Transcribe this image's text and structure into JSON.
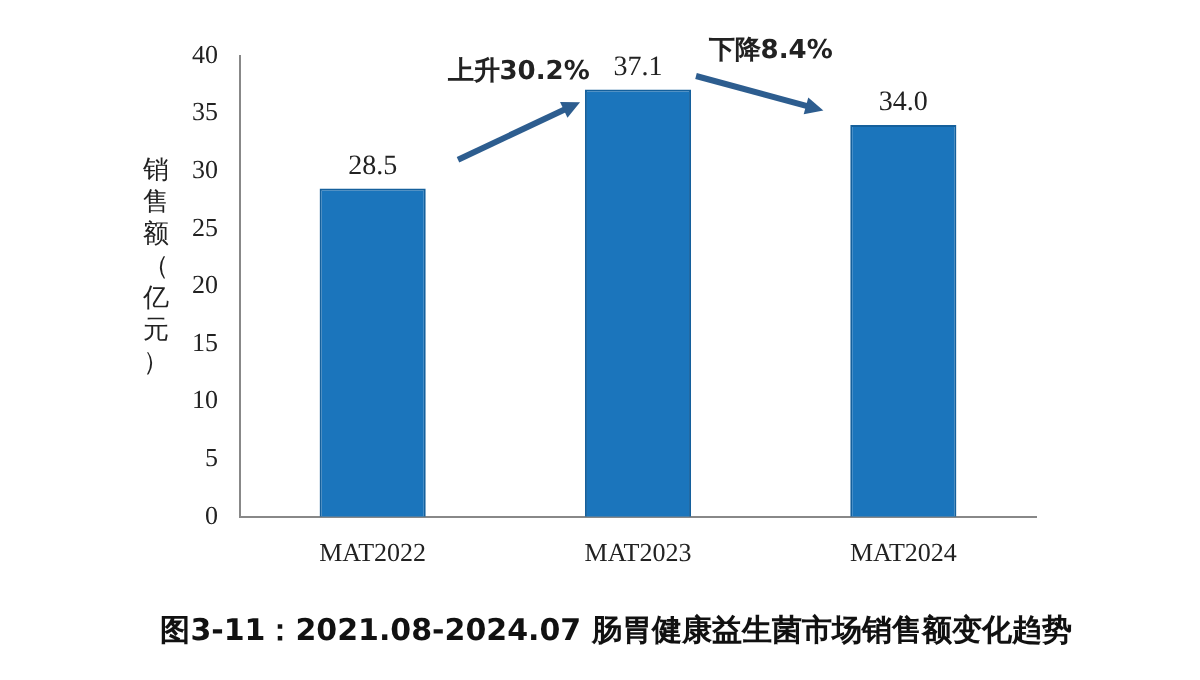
{
  "chart_data": {
    "type": "bar",
    "title": "图3-11：2021.08-2024.07 肠胃健康益生菌市场销售额变化趋势",
    "ylabel": "销售额（亿元）",
    "categories": [
      "MAT2022",
      "MAT2023",
      "MAT2024"
    ],
    "values": [
      28.5,
      37.1,
      34.0
    ],
    "value_labels": [
      "28.5",
      "37.1",
      "34.0"
    ],
    "color": "#1b75bc",
    "ylim": [
      0,
      40
    ],
    "yticks": [
      0,
      5,
      10,
      15,
      20,
      25,
      30,
      35,
      40
    ],
    "grid": false,
    "legend": false,
    "annotations": [
      "上升30.2%",
      "下降8.4%"
    ]
  }
}
